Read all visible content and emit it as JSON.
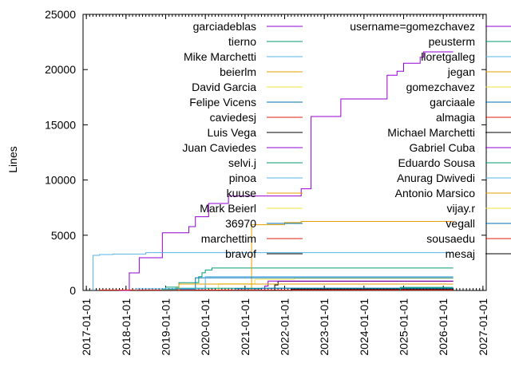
{
  "chart_data": {
    "type": "line",
    "title": "",
    "xlabel": "",
    "ylabel": "Lines",
    "xlim": [
      "2016-12",
      "2027-02"
    ],
    "ylim": [
      0,
      25000
    ],
    "x_ticks": [
      "2017-01-01",
      "2018-01-01",
      "2019-01-01",
      "2020-01-01",
      "2021-01-01",
      "2022-01-01",
      "2023-01-01",
      "2024-01-01",
      "2025-01-01",
      "2026-01-01",
      "2027-01-01"
    ],
    "y_ticks": [
      "0",
      "5000",
      "10000",
      "15000",
      "20000",
      "25000"
    ],
    "grid": false,
    "legend_placement": "top, two columns",
    "end_date": "2026-04",
    "series": [
      {
        "name": "garciadeblas",
        "color": "#9400d3",
        "points": [
          [
            "2017-11",
            0
          ],
          [
            "2018-02",
            1590
          ],
          [
            "2018-05",
            2960
          ],
          [
            "2018-12",
            5220
          ],
          [
            "2019-08",
            5780
          ],
          [
            "2019-10",
            6670
          ],
          [
            "2020-02",
            7880
          ],
          [
            "2020-08",
            8550
          ],
          [
            "2022-06",
            9200
          ],
          [
            "2022-09",
            15750
          ],
          [
            "2023-06",
            17340
          ],
          [
            "2024-08",
            19490
          ],
          [
            "2024-11",
            19850
          ],
          [
            "2025-01",
            20570
          ],
          [
            "2025-06",
            21120
          ],
          [
            "2025-07",
            21600
          ]
        ]
      },
      {
        "name": "tierno",
        "color": "#009e73",
        "points": [
          [
            "2019-01",
            300
          ],
          [
            "2019-05",
            700
          ],
          [
            "2019-11",
            1250
          ],
          [
            "2019-12",
            1600
          ],
          [
            "2020-01",
            1850
          ],
          [
            "2020-03",
            2030
          ]
        ]
      },
      {
        "name": "Mike Marchetti",
        "color": "#56b4e9",
        "points": [
          [
            "2017-03",
            3180
          ],
          [
            "2017-05",
            3250
          ],
          [
            "2017-09",
            3300
          ],
          [
            "2018-07",
            3420
          ]
        ]
      },
      {
        "name": "beierlm",
        "color": "#e69f00",
        "points": [
          [
            "2021-03",
            5950
          ],
          [
            "2022-01",
            6150
          ],
          [
            "2022-06",
            6250
          ]
        ]
      },
      {
        "name": "David Garcia",
        "color": "#f0e442",
        "points": [
          [
            "2020-05",
            600
          ],
          [
            "2021-04",
            1010
          ],
          [
            "2022-04",
            1100
          ]
        ]
      },
      {
        "name": "Felipe Vicens",
        "color": "#0072b2",
        "points": [
          [
            "2019-02",
            100
          ],
          [
            "2019-10",
            1150
          ]
        ]
      },
      {
        "name": "caviedesj",
        "color": "#e51e10",
        "points": [
          [
            "2017-05",
            40
          ]
        ]
      },
      {
        "name": "Luis Vega",
        "color": "#000000",
        "points": [
          [
            "2021-10",
            500
          ],
          [
            "2021-11",
            830
          ]
        ]
      },
      {
        "name": "Juan Caviedes",
        "color": "#9400d3",
        "points": [
          [
            "2021-07",
            400
          ],
          [
            "2021-08",
            845
          ]
        ]
      },
      {
        "name": "selvi.j",
        "color": "#009e73",
        "points": [
          [
            "2018-12",
            80
          ],
          [
            "2019-04",
            200
          ]
        ]
      },
      {
        "name": "pinoa",
        "color": "#56b4e9",
        "points": [
          [
            "2018-04",
            150
          ],
          [
            "2020-01",
            1250
          ]
        ]
      },
      {
        "name": "kuuse",
        "color": "#e69f00",
        "points": [
          [
            "2019-05",
            580
          ]
        ]
      },
      {
        "name": "Mark Beierl",
        "color": "#f0e442",
        "points": []
      },
      {
        "name": "36970",
        "color": "#0072b2",
        "points": [
          [
            "2020-10",
            150
          ],
          [
            "2021-06",
            200
          ]
        ]
      },
      {
        "name": "marchettim",
        "color": "#e51e10",
        "points": []
      },
      {
        "name": "bravof",
        "color": "#000000",
        "points": [
          [
            "2022-03",
            120
          ]
        ]
      },
      {
        "name": "username=gomezchavez",
        "color": "#9400d3",
        "points": []
      },
      {
        "name": "peusterm",
        "color": "#009e73",
        "points": [
          [
            "2024-12",
            280
          ]
        ]
      },
      {
        "name": "lloretgalleg",
        "color": "#56b4e9",
        "points": []
      },
      {
        "name": "jegan",
        "color": "#e69f00",
        "points": []
      },
      {
        "name": "gomezchavez",
        "color": "#f0e442",
        "points": []
      },
      {
        "name": "garciaale",
        "color": "#0072b2",
        "points": []
      },
      {
        "name": "almagia",
        "color": "#e51e10",
        "points": []
      },
      {
        "name": "Michael Marchetti",
        "color": "#000000",
        "points": []
      },
      {
        "name": "Gabriel Cuba",
        "color": "#9400d3",
        "points": []
      },
      {
        "name": "Eduardo Sousa",
        "color": "#009e73",
        "points": []
      },
      {
        "name": "Anurag Dwivedi",
        "color": "#56b4e9",
        "points": []
      },
      {
        "name": "Antonio Marsico",
        "color": "#e69f00",
        "points": []
      },
      {
        "name": "vijay.r",
        "color": "#f0e442",
        "points": []
      },
      {
        "name": "vegall",
        "color": "#0072b2",
        "points": []
      },
      {
        "name": "sousaedu",
        "color": "#e51e10",
        "points": []
      },
      {
        "name": "mesaj",
        "color": "#000000",
        "points": []
      }
    ]
  }
}
